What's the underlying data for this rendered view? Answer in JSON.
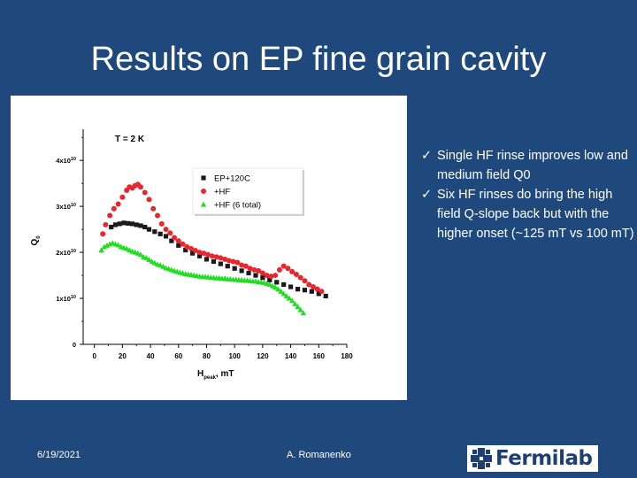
{
  "slide": {
    "title": "Results on EP fine grain cavity",
    "date": "6/19/2021",
    "author": "A. Romanenko",
    "logo_text": "Fermilab",
    "bullets": [
      "Single HF rinse improves low and medium field Q0",
      "Six HF rinses do bring the high field Q-slope back but with the higher onset (~125 mT vs 100 mT)"
    ],
    "check_glyph": "✓",
    "colors": {
      "background": "#1f497d",
      "text": "#ffffff",
      "logo": "#1f3f73"
    }
  },
  "chart_data": {
    "type": "scatter",
    "annotation": "T = 2 K",
    "xlabel": "H",
    "xlabel_sub": "peak",
    "xlabel_unit": ", mT",
    "ylabel": "Q",
    "ylabel_sub": "0",
    "xlim": [
      -8,
      180
    ],
    "ylim": [
      0,
      46000000000.0
    ],
    "xticks": [
      0,
      20,
      40,
      60,
      80,
      100,
      120,
      140,
      160,
      180
    ],
    "yticks": [
      {
        "value": 0,
        "label": "0"
      },
      {
        "value": 10000000000.0,
        "label": "1x10",
        "exp": "10"
      },
      {
        "value": 20000000000.0,
        "label": "2x10",
        "exp": "10"
      },
      {
        "value": 30000000000.0,
        "label": "3x10",
        "exp": "10"
      },
      {
        "value": 40000000000.0,
        "label": "4x10",
        "exp": "10"
      }
    ],
    "legend_position": "top-right",
    "series": [
      {
        "name": "EP+120C",
        "marker": "square",
        "color": "#1a1a1a",
        "points": [
          [
            12,
            25500000000.0
          ],
          [
            15,
            26000000000.0
          ],
          [
            18,
            26200000000.0
          ],
          [
            21,
            26400000000.0
          ],
          [
            24,
            26300000000.0
          ],
          [
            27,
            26200000000.0
          ],
          [
            30,
            26000000000.0
          ],
          [
            33,
            25800000000.0
          ],
          [
            36,
            25500000000.0
          ],
          [
            39,
            25000000000.0
          ],
          [
            43,
            24500000000.0
          ],
          [
            47,
            24000000000.0
          ],
          [
            51,
            23500000000.0
          ],
          [
            55,
            22500000000.0
          ],
          [
            60,
            21500000000.0
          ],
          [
            65,
            20500000000.0
          ],
          [
            70,
            19800000000.0
          ],
          [
            75,
            19200000000.0
          ],
          [
            80,
            18500000000.0
          ],
          [
            85,
            18000000000.0
          ],
          [
            90,
            17500000000.0
          ],
          [
            95,
            17000000000.0
          ],
          [
            100,
            16500000000.0
          ],
          [
            105,
            16000000000.0
          ],
          [
            110,
            15500000000.0
          ],
          [
            115,
            15000000000.0
          ],
          [
            120,
            14500000000.0
          ],
          [
            125,
            14000000000.0
          ],
          [
            130,
            13500000000.0
          ],
          [
            135,
            13000000000.0
          ],
          [
            140,
            12500000000.0
          ],
          [
            145,
            12000000000.0
          ],
          [
            150,
            11800000000.0
          ],
          [
            155,
            11500000000.0
          ],
          [
            160,
            11000000000.0
          ],
          [
            165,
            10500000000.0
          ]
        ]
      },
      {
        "name": "+HF",
        "marker": "circle",
        "color": "#e8262e",
        "points": [
          [
            6,
            24000000000.0
          ],
          [
            8,
            26000000000.0
          ],
          [
            11,
            28000000000.0
          ],
          [
            14,
            29500000000.0
          ],
          [
            17,
            30500000000.0
          ],
          [
            20,
            32000000000.0
          ],
          [
            23,
            33500000000.0
          ],
          [
            25,
            34200000000.0
          ],
          [
            27,
            34000000000.0
          ],
          [
            29,
            34500000000.0
          ],
          [
            31,
            34800000000.0
          ],
          [
            33,
            34200000000.0
          ],
          [
            36,
            33000000000.0
          ],
          [
            39,
            31500000000.0
          ],
          [
            42,
            29500000000.0
          ],
          [
            45,
            28000000000.0
          ],
          [
            48,
            26200000000.0
          ],
          [
            51,
            25000000000.0
          ],
          [
            54,
            24200000000.0
          ],
          [
            57,
            23200000000.0
          ],
          [
            60,
            22500000000.0
          ],
          [
            63,
            21800000000.0
          ],
          [
            66,
            21200000000.0
          ],
          [
            69,
            20800000000.0
          ],
          [
            72,
            20400000000.0
          ],
          [
            75,
            20000000000.0
          ],
          [
            78,
            19800000000.0
          ],
          [
            81,
            19500000000.0
          ],
          [
            84,
            19200000000.0
          ],
          [
            87,
            19000000000.0
          ],
          [
            90,
            18800000000.0
          ],
          [
            93,
            18500000000.0
          ],
          [
            96,
            18200000000.0
          ],
          [
            99,
            18000000000.0
          ],
          [
            102,
            17800000000.0
          ],
          [
            105,
            17200000000.0
          ],
          [
            108,
            17000000000.0
          ],
          [
            111,
            16500000000.0
          ],
          [
            114,
            16200000000.0
          ],
          [
            117,
            16000000000.0
          ],
          [
            120,
            15500000000.0
          ],
          [
            123,
            15000000000.0
          ],
          [
            126,
            14800000000.0
          ],
          [
            129,
            15000000000.0
          ],
          [
            132,
            16200000000.0
          ],
          [
            135,
            17000000000.0
          ],
          [
            138,
            16500000000.0
          ],
          [
            141,
            15800000000.0
          ],
          [
            144,
            15200000000.0
          ],
          [
            147,
            14500000000.0
          ],
          [
            150,
            13800000000.0
          ],
          [
            153,
            13000000000.0
          ],
          [
            156,
            12500000000.0
          ],
          [
            159,
            12000000000.0
          ],
          [
            162,
            11500000000.0
          ]
        ]
      },
      {
        "name": "+HF (6 total)",
        "marker": "triangle",
        "color": "#22dd22",
        "points": [
          [
            5,
            20500000000.0
          ],
          [
            7,
            21200000000.0
          ],
          [
            9,
            21500000000.0
          ],
          [
            11,
            21800000000.0
          ],
          [
            13,
            22000000000.0
          ],
          [
            15,
            21800000000.0
          ],
          [
            17,
            21600000000.0
          ],
          [
            19,
            21200000000.0
          ],
          [
            21,
            21000000000.0
          ],
          [
            23,
            20800000000.0
          ],
          [
            25,
            20500000000.0
          ],
          [
            27,
            20200000000.0
          ],
          [
            29,
            20000000000.0
          ],
          [
            31,
            19800000000.0
          ],
          [
            33,
            19500000000.0
          ],
          [
            35,
            19000000000.0
          ],
          [
            37,
            18800000000.0
          ],
          [
            39,
            18400000000.0
          ],
          [
            41,
            18000000000.0
          ],
          [
            43,
            17700000000.0
          ],
          [
            45,
            17400000000.0
          ],
          [
            47,
            17200000000.0
          ],
          [
            49,
            16900000000.0
          ],
          [
            51,
            16600000000.0
          ],
          [
            53,
            16400000000.0
          ],
          [
            55,
            16200000000.0
          ],
          [
            57,
            16000000000.0
          ],
          [
            59,
            15800000000.0
          ],
          [
            61,
            15600000000.0
          ],
          [
            63,
            15500000000.0
          ],
          [
            65,
            15300000000.0
          ],
          [
            67,
            15200000000.0
          ],
          [
            69,
            15100000000.0
          ],
          [
            71,
            15000000000.0
          ],
          [
            73,
            14900000000.0
          ],
          [
            75,
            14800000000.0
          ],
          [
            77,
            14700000000.0
          ],
          [
            79,
            14700000000.0
          ],
          [
            81,
            14600000000.0
          ],
          [
            83,
            14500000000.0
          ],
          [
            85,
            14500000000.0
          ],
          [
            87,
            14400000000.0
          ],
          [
            89,
            14400000000.0
          ],
          [
            91,
            14300000000.0
          ],
          [
            93,
            14300000000.0
          ],
          [
            95,
            14200000000.0
          ],
          [
            97,
            14200000000.0
          ],
          [
            99,
            14100000000.0
          ],
          [
            101,
            14100000000.0
          ],
          [
            103,
            14000000000.0
          ],
          [
            105,
            14000000000.0
          ],
          [
            107,
            13900000000.0
          ],
          [
            109,
            13900000000.0
          ],
          [
            111,
            13800000000.0
          ],
          [
            113,
            13700000000.0
          ],
          [
            115,
            13700000000.0
          ],
          [
            117,
            13600000000.0
          ],
          [
            119,
            13500000000.0
          ],
          [
            121,
            13400000000.0
          ],
          [
            123,
            13200000000.0
          ],
          [
            125,
            13000000000.0
          ],
          [
            127,
            12700000000.0
          ],
          [
            129,
            12400000000.0
          ],
          [
            131,
            12000000000.0
          ],
          [
            133,
            11500000000.0
          ],
          [
            135,
            11000000000.0
          ],
          [
            137,
            10500000000.0
          ],
          [
            139,
            10000000000.0
          ],
          [
            141,
            9500000000.0
          ],
          [
            143,
            8800000000.0
          ],
          [
            145,
            8200000000.0
          ],
          [
            147,
            7500000000.0
          ],
          [
            149,
            6800000000.0
          ]
        ]
      }
    ]
  }
}
